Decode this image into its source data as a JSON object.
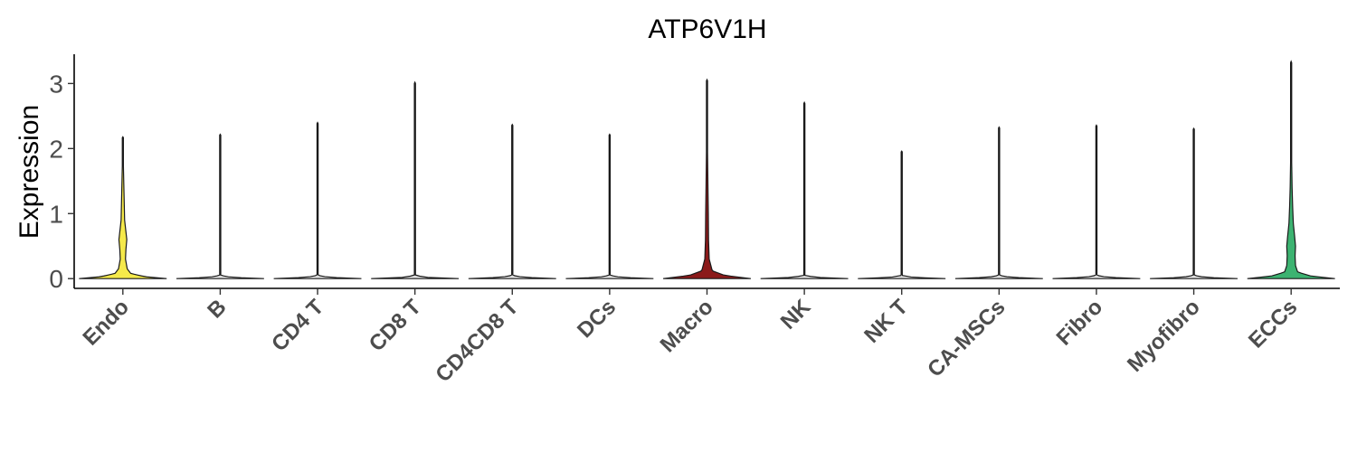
{
  "chart_data": {
    "type": "violin",
    "title": "ATP6V1H",
    "xlabel": "",
    "ylabel": "Expression",
    "ylim": [
      -0.15,
      3.45
    ],
    "yticks": [
      0,
      1,
      2,
      3
    ],
    "grid": false,
    "legend": "none",
    "categories": [
      "Endo",
      "B",
      "CD4 T",
      "CD8 T",
      "CD4CD8 T",
      "DCs",
      "Macro",
      "NK",
      "NK T",
      "CA-MSCs",
      "Fibro",
      "Myofibro",
      "ECCs"
    ],
    "colors": [
      "#F5E94A",
      "#E0E0E0",
      "#E0E0E0",
      "#E0E0E0",
      "#E0E0E0",
      "#E0E0E0",
      "#8B1A1A",
      "#E0E0E0",
      "#E0E0E0",
      "#E0E0E0",
      "#E0E0E0",
      "#E0E0E0",
      "#3CB371"
    ],
    "max_values": [
      2.18,
      2.22,
      2.4,
      3.02,
      2.37,
      2.22,
      3.06,
      2.71,
      1.96,
      2.33,
      2.36,
      2.31,
      3.34
    ],
    "density_profiles": [
      [
        [
          0,
          1.0
        ],
        [
          0.03,
          0.5
        ],
        [
          0.08,
          0.18
        ],
        [
          0.15,
          0.1
        ],
        [
          0.3,
          0.06
        ],
        [
          0.45,
          0.07
        ],
        [
          0.6,
          0.09
        ],
        [
          0.72,
          0.07
        ],
        [
          0.9,
          0.04
        ],
        [
          1.2,
          0.03
        ],
        [
          1.5,
          0.02
        ],
        [
          1.8,
          0.01
        ],
        [
          2.18,
          0.0
        ]
      ],
      [
        [
          0,
          1.0
        ],
        [
          0.02,
          0.25
        ],
        [
          0.05,
          0.01
        ],
        [
          2.22,
          0.0
        ]
      ],
      [
        [
          0,
          1.0
        ],
        [
          0.02,
          0.25
        ],
        [
          0.05,
          0.01
        ],
        [
          2.4,
          0.0
        ]
      ],
      [
        [
          0,
          1.0
        ],
        [
          0.02,
          0.25
        ],
        [
          0.05,
          0.01
        ],
        [
          3.02,
          0.0
        ]
      ],
      [
        [
          0,
          1.0
        ],
        [
          0.02,
          0.25
        ],
        [
          0.05,
          0.01
        ],
        [
          2.37,
          0.0
        ]
      ],
      [
        [
          0,
          1.0
        ],
        [
          0.02,
          0.25
        ],
        [
          0.05,
          0.01
        ],
        [
          2.22,
          0.0
        ]
      ],
      [
        [
          0,
          1.0
        ],
        [
          0.05,
          0.4
        ],
        [
          0.12,
          0.12
        ],
        [
          0.3,
          0.05
        ],
        [
          0.6,
          0.035
        ],
        [
          1.0,
          0.03
        ],
        [
          1.4,
          0.022
        ],
        [
          1.8,
          0.015
        ],
        [
          2.2,
          0.008
        ],
        [
          3.06,
          0.0
        ]
      ],
      [
        [
          0,
          1.0
        ],
        [
          0.02,
          0.25
        ],
        [
          0.05,
          0.01
        ],
        [
          2.71,
          0.0
        ]
      ],
      [
        [
          0,
          1.0
        ],
        [
          0.02,
          0.25
        ],
        [
          0.05,
          0.01
        ],
        [
          1.96,
          0.0
        ]
      ],
      [
        [
          0,
          1.0
        ],
        [
          0.02,
          0.25
        ],
        [
          0.05,
          0.01
        ],
        [
          2.33,
          0.0
        ]
      ],
      [
        [
          0,
          1.0
        ],
        [
          0.02,
          0.25
        ],
        [
          0.05,
          0.01
        ],
        [
          2.36,
          0.0
        ]
      ],
      [
        [
          0,
          1.0
        ],
        [
          0.02,
          0.25
        ],
        [
          0.05,
          0.01
        ],
        [
          2.31,
          0.0
        ]
      ],
      [
        [
          0,
          1.0
        ],
        [
          0.04,
          0.45
        ],
        [
          0.1,
          0.15
        ],
        [
          0.2,
          0.1
        ],
        [
          0.35,
          0.09
        ],
        [
          0.5,
          0.1
        ],
        [
          0.65,
          0.08
        ],
        [
          0.85,
          0.05
        ],
        [
          1.1,
          0.035
        ],
        [
          1.4,
          0.022
        ],
        [
          1.8,
          0.012
        ],
        [
          3.34,
          0.0
        ]
      ]
    ]
  }
}
